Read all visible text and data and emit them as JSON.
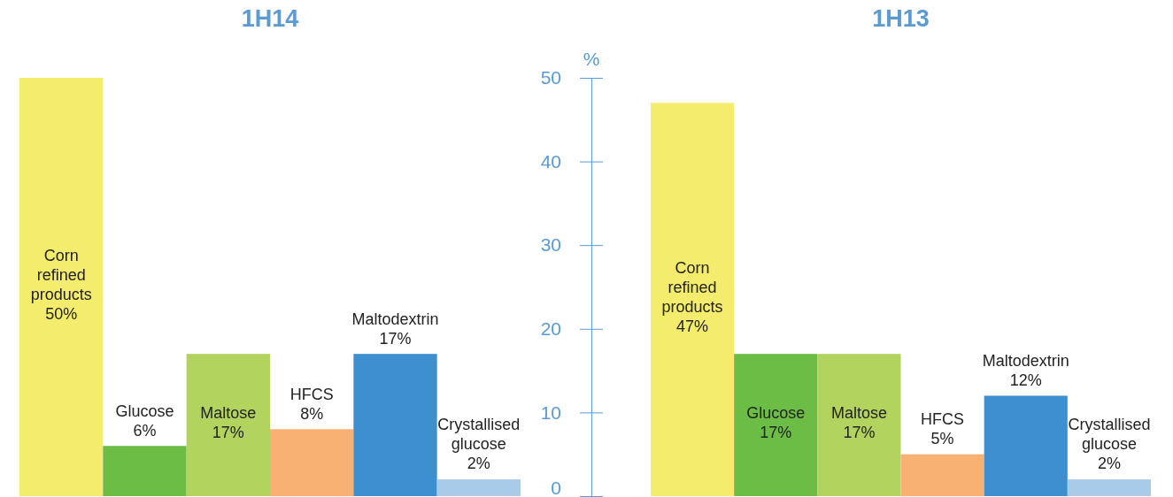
{
  "chart_data": [
    {
      "type": "bar",
      "title": "1H14",
      "categories": [
        "Corn refined products",
        "Glucose",
        "Maltose",
        "HFCS",
        "Maltodextrin",
        "Crystallised glucose"
      ],
      "values": [
        50,
        6,
        17,
        8,
        17,
        2
      ],
      "value_labels": [
        "50%",
        "6%",
        "17%",
        "8%",
        "17%",
        "2%"
      ],
      "colors": [
        "#f4ec6c",
        "#6cbd45",
        "#b3d35f",
        "#f8b173",
        "#3d8fcf",
        "#a9cbea"
      ],
      "ylim": [
        0,
        50
      ],
      "tick_labels": "x"
    },
    {
      "type": "bar",
      "title": "1H13",
      "ylabel": "%",
      "categories": [
        "Corn refined products",
        "Glucose",
        "Maltose",
        "HFCS",
        "Maltodextrin",
        "Crystallised glucose"
      ],
      "values": [
        47,
        17,
        17,
        5,
        12,
        2
      ],
      "value_labels": [
        "47%",
        "17%",
        "17%",
        "5%",
        "12%",
        "2%"
      ],
      "colors": [
        "#f4ec6c",
        "#6cbd45",
        "#b3d35f",
        "#f8b173",
        "#3d8fcf",
        "#a9cbea"
      ],
      "ylim": [
        0,
        50
      ],
      "yticks": [
        0,
        10,
        20,
        30,
        40,
        50
      ]
    }
  ]
}
